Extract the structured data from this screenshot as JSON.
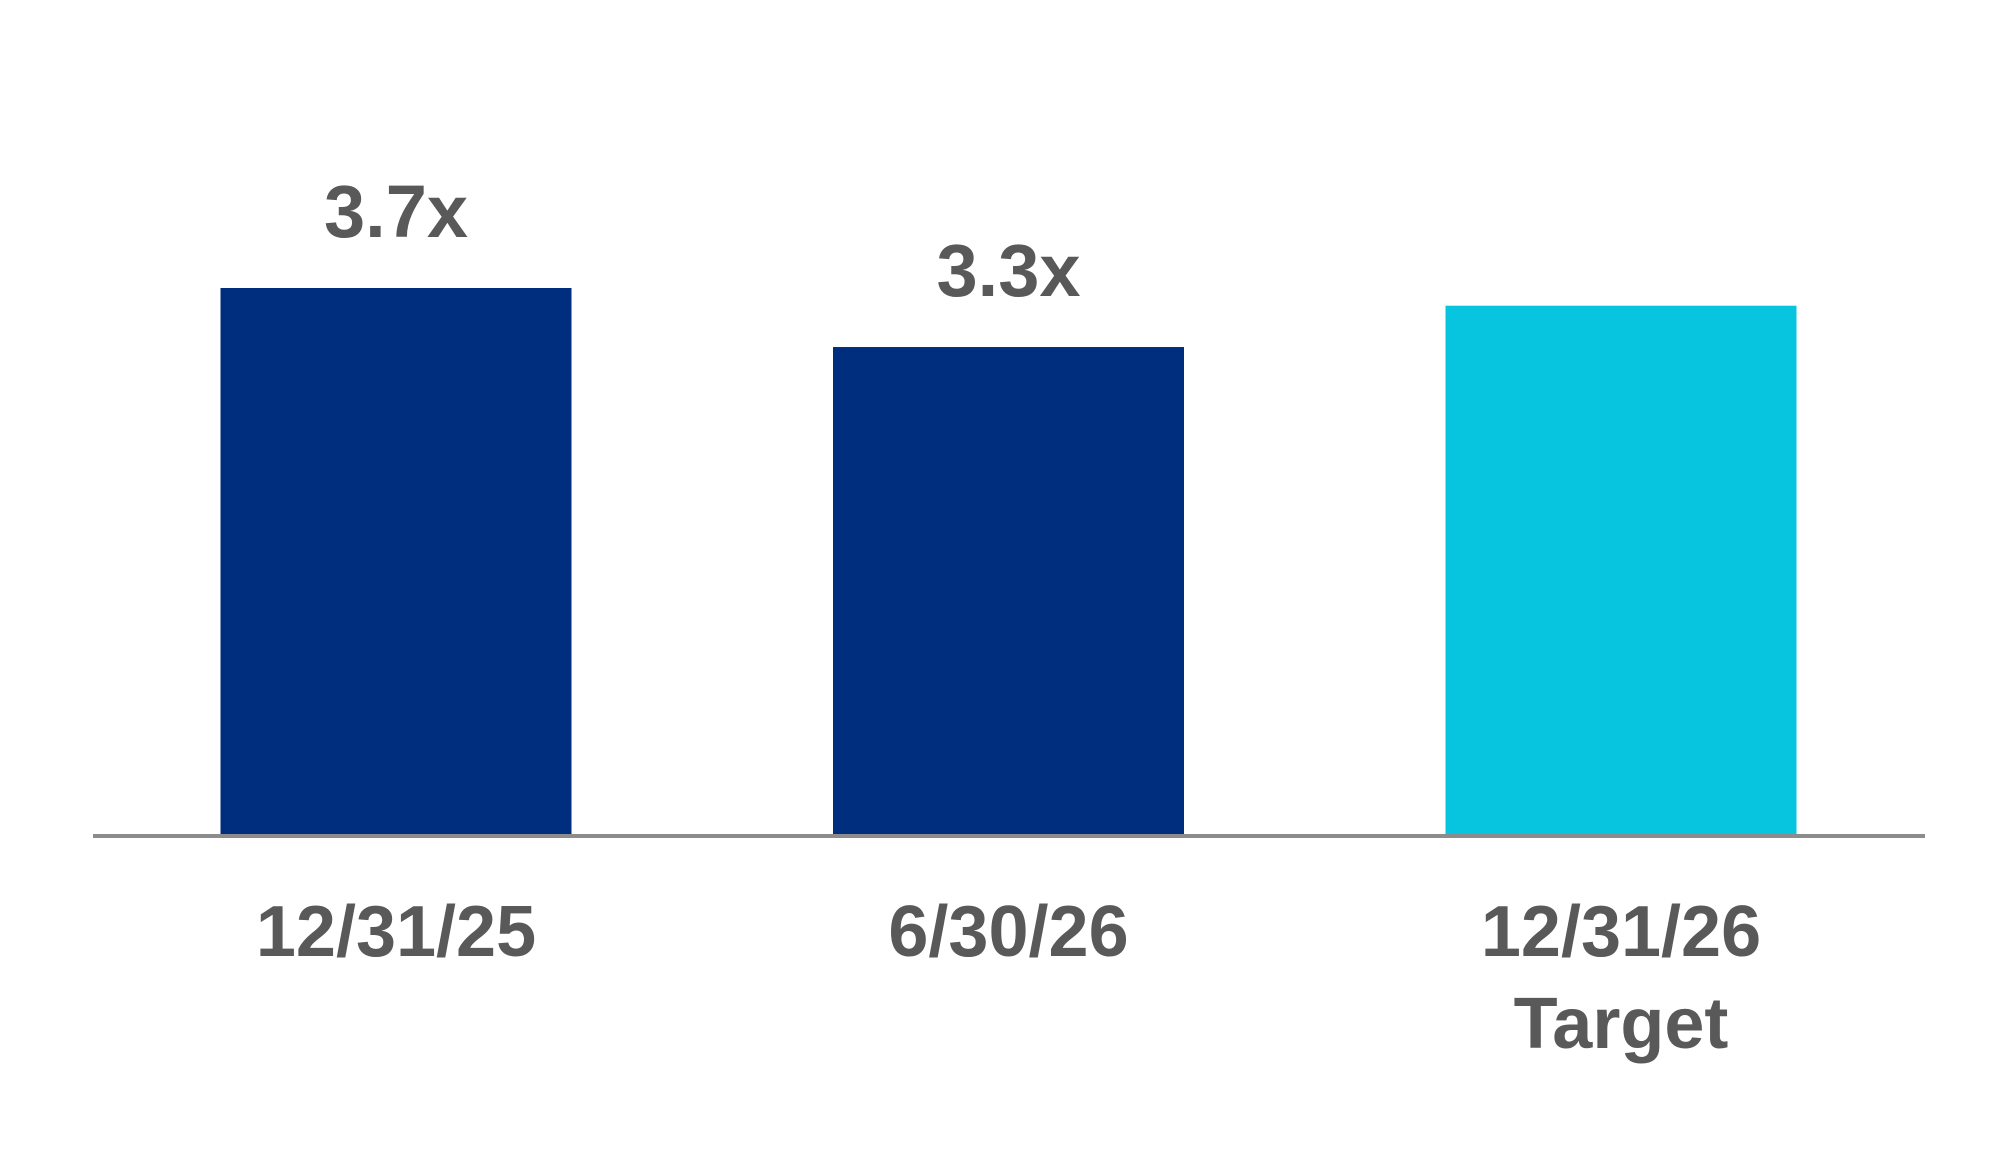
{
  "chart_data": {
    "type": "bar",
    "categories": [
      "12/31/25",
      "6/30/26",
      "12/31/26\nTarget"
    ],
    "values": [
      3.7,
      3.3,
      3.58
    ],
    "value_labels": [
      "3.7x",
      "3.3x",
      null
    ],
    "colors": [
      "#002e7f",
      "#002e7f",
      "#07c5de"
    ]
  }
}
